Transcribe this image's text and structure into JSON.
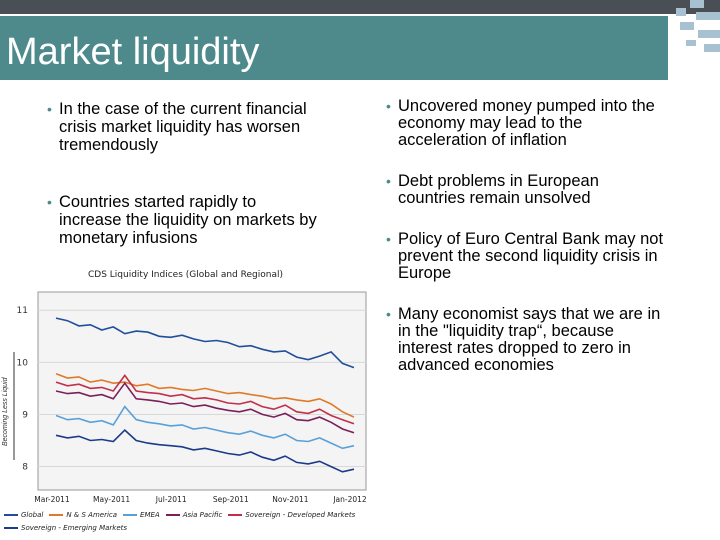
{
  "slide": {
    "title": "Market liquidity",
    "left_bullets": [
      "In the case of the current financial crisis market liquidity has worsen tremendously",
      "Countries started rapidly to increase the liquidity on markets by monetary infusions"
    ],
    "right_bullets": [
      "Uncovered money pumped into the economy may lead to the acceleration of inflation",
      "Debt problems in European countries remain unsolved",
      "Policy of Euro Central Bank may not prevent the second liquidity crisis in Europe",
      "Many economist says that we are in in the \"liquidity trap“, because interest rates dropped to zero in advanced economies"
    ],
    "accent_color": "#4e8a8c"
  },
  "chart_data": {
    "type": "line",
    "title": "CDS Liquidity Indices (Global and Regional)",
    "ylabel": "Becoming Less Liquid",
    "y_ticks": [
      "11",
      "10",
      "9",
      "8"
    ],
    "x_ticks": [
      "Mar-2011",
      "May-2011",
      "Jul-2011",
      "Sep-2011",
      "Nov-2011",
      "Jan-2012"
    ],
    "ylim": [
      7.55,
      11.35
    ],
    "grid": true,
    "legend_position": "bottom",
    "series": [
      {
        "name": "Global",
        "color": "#1f4e9a",
        "values": [
          10.85,
          10.8,
          10.7,
          10.72,
          10.62,
          10.68,
          10.55,
          10.6,
          10.58,
          10.5,
          10.48,
          10.52,
          10.45,
          10.4,
          10.42,
          10.38,
          10.3,
          10.32,
          10.25,
          10.2,
          10.22,
          10.1,
          10.05,
          10.12,
          10.2,
          9.98,
          9.9
        ]
      },
      {
        "name": "N & S America",
        "color": "#e07a2a",
        "values": [
          9.78,
          9.7,
          9.72,
          9.62,
          9.66,
          9.6,
          9.62,
          9.55,
          9.58,
          9.5,
          9.52,
          9.48,
          9.46,
          9.5,
          9.45,
          9.4,
          9.42,
          9.38,
          9.35,
          9.3,
          9.32,
          9.28,
          9.25,
          9.3,
          9.2,
          9.05,
          8.95
        ]
      },
      {
        "name": "EMEA",
        "color": "#5aa0d8",
        "values": [
          8.98,
          8.9,
          8.92,
          8.85,
          8.88,
          8.8,
          9.15,
          8.9,
          8.85,
          8.82,
          8.78,
          8.8,
          8.72,
          8.75,
          8.7,
          8.65,
          8.62,
          8.68,
          8.6,
          8.55,
          8.62,
          8.5,
          8.48,
          8.55,
          8.45,
          8.35,
          8.4
        ]
      },
      {
        "name": "Asia Pacific",
        "color": "#7a1f5a",
        "values": [
          9.45,
          9.4,
          9.42,
          9.35,
          9.38,
          9.3,
          9.6,
          9.3,
          9.28,
          9.25,
          9.2,
          9.22,
          9.15,
          9.18,
          9.12,
          9.08,
          9.05,
          9.1,
          9.0,
          8.95,
          9.02,
          8.9,
          8.88,
          8.95,
          8.85,
          8.72,
          8.65
        ]
      },
      {
        "name": "Sovereign - Developed Markets",
        "color": "#c0304a",
        "values": [
          9.62,
          9.55,
          9.58,
          9.5,
          9.52,
          9.45,
          9.75,
          9.45,
          9.42,
          9.4,
          9.35,
          9.38,
          9.3,
          9.32,
          9.28,
          9.22,
          9.2,
          9.25,
          9.15,
          9.1,
          9.18,
          9.05,
          9.02,
          9.1,
          8.98,
          8.9,
          8.82
        ]
      },
      {
        "name": "Sovereign - Emerging Markets",
        "color": "#1a3a8a",
        "values": [
          8.6,
          8.55,
          8.58,
          8.5,
          8.52,
          8.48,
          8.7,
          8.5,
          8.45,
          8.42,
          8.4,
          8.38,
          8.32,
          8.35,
          8.3,
          8.25,
          8.22,
          8.28,
          8.18,
          8.12,
          8.2,
          8.08,
          8.05,
          8.1,
          8.0,
          7.9,
          7.95
        ]
      }
    ]
  }
}
